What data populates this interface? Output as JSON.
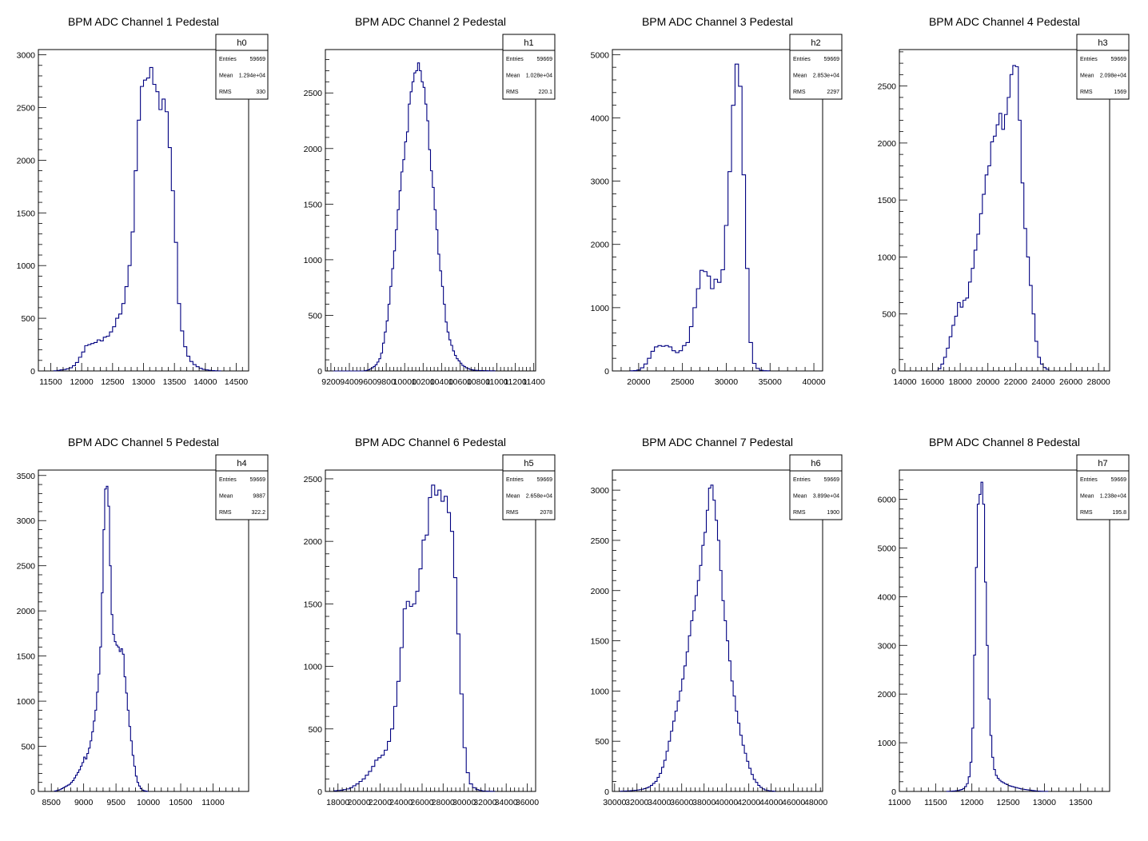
{
  "line_color": "#000080",
  "axis_color": "#000000",
  "chart_data": [
    {
      "type": "histogram",
      "title": "BPM ADC Channel 1 Pedestal",
      "stats": {
        "name": "h0",
        "rows": [
          [
            "Entries",
            "59669"
          ],
          [
            "Mean",
            "1.294e+04"
          ],
          [
            "RMS",
            "330"
          ]
        ]
      },
      "xlim": [
        11300,
        14700
      ],
      "ylim": [
        0,
        3050
      ],
      "xticks": [
        11500,
        12000,
        12500,
        13000,
        13500,
        14000,
        14500
      ],
      "xtick_labels": [
        "11500",
        "12000",
        "12500",
        "13000",
        "13500",
        "14000",
        "14500"
      ],
      "yticks": [
        0,
        500,
        1000,
        1500,
        2000,
        2500,
        3000
      ],
      "ytick_labels": [
        "0",
        "500",
        "1000",
        "1500",
        "2000",
        "2500",
        "3000"
      ],
      "hist": {
        "start": 11550,
        "width": 50,
        "counts": [
          2,
          5,
          10,
          14,
          20,
          30,
          50,
          80,
          130,
          180,
          240,
          250,
          260,
          270,
          295,
          285,
          320,
          330,
          370,
          420,
          500,
          540,
          640,
          800,
          1000,
          1320,
          1900,
          2380,
          2700,
          2760,
          2780,
          2880,
          2720,
          2650,
          2480,
          2580,
          2460,
          2120,
          1710,
          1220,
          640,
          380,
          230,
          140,
          90,
          60,
          40,
          25,
          15,
          10,
          6,
          3,
          2,
          1
        ]
      }
    },
    {
      "type": "histogram",
      "title": "BPM ADC Channel 2 Pedestal",
      "stats": {
        "name": "h1",
        "rows": [
          [
            "Entries",
            "59669"
          ],
          [
            "Mean",
            "1.028e+04"
          ],
          [
            "RMS",
            "220.1"
          ]
        ]
      },
      "xlim": [
        9140,
        11420
      ],
      "ylim": [
        0,
        2890
      ],
      "xticks": [
        9200,
        9400,
        9600,
        9800,
        10000,
        10200,
        10400,
        10600,
        10800,
        11000,
        11200,
        11400
      ],
      "xtick_labels": [
        "9200",
        "9400",
        "9600",
        "9800",
        "10000",
        "10200",
        "10400",
        "10600",
        "10800",
        "11000",
        "11200",
        "11400"
      ],
      "yticks": [
        0,
        500,
        1000,
        1500,
        2000,
        2500
      ],
      "ytick_labels": [
        "0",
        "500",
        "1000",
        "1500",
        "2000",
        "2500"
      ],
      "hist": {
        "start": 9180,
        "width": 20,
        "counts": [
          0,
          0,
          0,
          0,
          0,
          0,
          0,
          0,
          0,
          0,
          0,
          0,
          0,
          0,
          0,
          0,
          0,
          0,
          0,
          2,
          5,
          10,
          18,
          28,
          40,
          55,
          80,
          110,
          160,
          250,
          350,
          450,
          600,
          760,
          920,
          1080,
          1270,
          1450,
          1620,
          1790,
          1900,
          2060,
          2150,
          2400,
          2510,
          2600,
          2680,
          2700,
          2770,
          2700,
          2600,
          2550,
          2400,
          2250,
          1990,
          1800,
          1650,
          1450,
          1270,
          1050,
          900,
          760,
          600,
          440,
          350,
          280,
          230,
          180,
          140,
          110,
          90,
          70,
          50,
          40,
          28,
          22,
          15,
          10,
          8,
          6,
          5,
          4,
          3,
          3,
          2,
          2,
          1,
          1,
          1,
          1
        ]
      }
    },
    {
      "type": "histogram",
      "title": "BPM ADC Channel 3 Pedestal",
      "stats": {
        "name": "h2",
        "rows": [
          [
            "Entries",
            "59669"
          ],
          [
            "Mean",
            "2.853e+04"
          ],
          [
            "RMS",
            "2297"
          ]
        ]
      },
      "xlim": [
        17000,
        41000
      ],
      "ylim": [
        0,
        5080
      ],
      "xticks": [
        20000,
        25000,
        30000,
        35000,
        40000
      ],
      "xtick_labels": [
        "20000",
        "25000",
        "30000",
        "35000",
        "40000"
      ],
      "yticks": [
        0,
        1000,
        2000,
        3000,
        4000,
        5000
      ],
      "ytick_labels": [
        "0",
        "1000",
        "2000",
        "3000",
        "4000",
        "5000"
      ],
      "hist": {
        "start": 19000,
        "width": 400,
        "counts": [
          2,
          5,
          15,
          50,
          110,
          200,
          310,
          380,
          400,
          390,
          400,
          380,
          320,
          290,
          320,
          400,
          450,
          700,
          1000,
          1300,
          1590,
          1570,
          1500,
          1300,
          1450,
          1400,
          1600,
          2300,
          3150,
          4200,
          4850,
          4500,
          3100,
          1620,
          450,
          120,
          40,
          10,
          4,
          2
        ]
      }
    },
    {
      "type": "histogram",
      "title": "BPM ADC Channel 4 Pedestal",
      "stats": {
        "name": "h3",
        "rows": [
          [
            "Entries",
            "59669"
          ],
          [
            "Mean",
            "2.098e+04"
          ],
          [
            "RMS",
            "1569"
          ]
        ]
      },
      "xlim": [
        13600,
        28800
      ],
      "ylim": [
        0,
        2820
      ],
      "xticks": [
        14000,
        16000,
        18000,
        20000,
        22000,
        24000,
        26000,
        28000
      ],
      "xtick_labels": [
        "14000",
        "16000",
        "18000",
        "20000",
        "22000",
        "24000",
        "26000",
        "28000"
      ],
      "yticks": [
        0,
        500,
        1000,
        1500,
        2000,
        2500
      ],
      "ytick_labels": [
        "0",
        "500",
        "1000",
        "1500",
        "2000",
        "2500"
      ],
      "hist": {
        "start": 16400,
        "width": 200,
        "counts": [
          20,
          60,
          120,
          200,
          300,
          400,
          480,
          600,
          560,
          620,
          640,
          780,
          900,
          1060,
          1200,
          1380,
          1550,
          1720,
          1800,
          2010,
          2060,
          2160,
          2260,
          2120,
          2250,
          2400,
          2600,
          2680,
          2670,
          2200,
          1650,
          1250,
          1000,
          750,
          500,
          260,
          120,
          60,
          30,
          15
        ]
      }
    },
    {
      "type": "histogram",
      "title": "BPM ADC Channel 5 Pedestal",
      "stats": {
        "name": "h4",
        "rows": [
          [
            "Entries",
            "59669"
          ],
          [
            "Mean",
            "9887"
          ],
          [
            "RMS",
            "322.2"
          ]
        ]
      },
      "xlim": [
        8300,
        11550
      ],
      "ylim": [
        0,
        3560
      ],
      "xticks": [
        8500,
        9000,
        9500,
        10000,
        10500,
        11000
      ],
      "xtick_labels": [
        "8500",
        "9000",
        "9500",
        "10000",
        "10500",
        "11000"
      ],
      "yticks": [
        0,
        500,
        1000,
        1500,
        2000,
        2500,
        3000,
        3500
      ],
      "ytick_labels": [
        "0",
        "500",
        "1000",
        "1500",
        "2000",
        "2500",
        "3000",
        "3500"
      ],
      "hist": {
        "start": 8550,
        "width": 25,
        "counts": [
          5,
          10,
          15,
          20,
          30,
          40,
          50,
          60,
          70,
          80,
          100,
          120,
          150,
          180,
          210,
          240,
          280,
          320,
          380,
          360,
          420,
          480,
          560,
          660,
          780,
          900,
          1100,
          1300,
          1600,
          2200,
          2900,
          3350,
          3380,
          3160,
          2500,
          1960,
          1740,
          1660,
          1620,
          1600,
          1550,
          1580,
          1520,
          1270,
          1090,
          900,
          720,
          560,
          400,
          280,
          170,
          100,
          60,
          30,
          15,
          8,
          4,
          2
        ]
      }
    },
    {
      "type": "histogram",
      "title": "BPM ADC Channel 6 Pedestal",
      "stats": {
        "name": "h5",
        "rows": [
          [
            "Entries",
            "59669"
          ],
          [
            "Mean",
            "2.658e+04"
          ],
          [
            "RMS",
            "2078"
          ]
        ]
      },
      "xlim": [
        16800,
        36800
      ],
      "ylim": [
        0,
        2570
      ],
      "xticks": [
        18000,
        20000,
        22000,
        24000,
        26000,
        28000,
        30000,
        32000,
        34000,
        36000
      ],
      "xtick_labels": [
        "18000",
        "20000",
        "22000",
        "24000",
        "26000",
        "28000",
        "30000",
        "32000",
        "34000",
        "36000"
      ],
      "yticks": [
        0,
        500,
        1000,
        1500,
        2000,
        2500
      ],
      "ytick_labels": [
        "0",
        "500",
        "1000",
        "1500",
        "2000",
        "2500"
      ],
      "hist": {
        "start": 17600,
        "width": 300,
        "counts": [
          5,
          8,
          10,
          15,
          20,
          30,
          45,
          60,
          80,
          100,
          130,
          160,
          200,
          250,
          270,
          290,
          330,
          400,
          500,
          680,
          880,
          1150,
          1460,
          1520,
          1480,
          1500,
          1600,
          1780,
          2010,
          2050,
          2350,
          2450,
          2370,
          2410,
          2320,
          2360,
          2230,
          2080,
          1710,
          1260,
          780,
          350,
          150,
          60,
          30,
          15,
          8,
          4,
          2,
          1,
          1
        ]
      }
    },
    {
      "type": "histogram",
      "title": "BPM ADC Channel 7 Pedestal",
      "stats": {
        "name": "h6",
        "rows": [
          [
            "Entries",
            "59669"
          ],
          [
            "Mean",
            "3.899e+04"
          ],
          [
            "RMS",
            "1900"
          ]
        ]
      },
      "xlim": [
        29800,
        48600
      ],
      "ylim": [
        0,
        3200
      ],
      "xticks": [
        30000,
        32000,
        34000,
        36000,
        38000,
        40000,
        42000,
        44000,
        46000,
        48000
      ],
      "xtick_labels": [
        "30000",
        "32000",
        "34000",
        "36000",
        "38000",
        "40000",
        "42000",
        "44000",
        "46000",
        "48000"
      ],
      "yticks": [
        0,
        500,
        1000,
        1500,
        2000,
        2500,
        3000
      ],
      "ytick_labels": [
        "0",
        "500",
        "1000",
        "1500",
        "2000",
        "2500",
        "3000"
      ],
      "hist": {
        "start": 30400,
        "width": 200,
        "counts": [
          2,
          3,
          4,
          5,
          6,
          8,
          10,
          12,
          15,
          18,
          22,
          28,
          35,
          45,
          60,
          80,
          100,
          140,
          180,
          240,
          310,
          400,
          500,
          600,
          700,
          800,
          900,
          1000,
          1120,
          1250,
          1390,
          1550,
          1700,
          1800,
          1950,
          2100,
          2250,
          2450,
          2580,
          2800,
          3020,
          3050,
          2900,
          2700,
          2500,
          2200,
          1900,
          1700,
          1500,
          1300,
          1100,
          950,
          800,
          680,
          560,
          460,
          380,
          300,
          230,
          170,
          120,
          90,
          60,
          40,
          25,
          15,
          10,
          6,
          4,
          2
        ]
      }
    },
    {
      "type": "histogram",
      "title": "BPM ADC Channel 8 Pedestal",
      "stats": {
        "name": "h7",
        "rows": [
          [
            "Entries",
            "59669"
          ],
          [
            "Mean",
            "1.238e+04"
          ],
          [
            "RMS",
            "195.8"
          ]
        ]
      },
      "xlim": [
        11000,
        13900
      ],
      "ylim": [
        0,
        6600
      ],
      "xticks": [
        11000,
        11500,
        12000,
        12500,
        13000,
        13500
      ],
      "xtick_labels": [
        "11000",
        "11500",
        "12000",
        "12500",
        "13000",
        "13500"
      ],
      "yticks": [
        0,
        1000,
        2000,
        3000,
        4000,
        5000,
        6000
      ],
      "ytick_labels": [
        "0",
        "1000",
        "2000",
        "3000",
        "4000",
        "5000",
        "6000"
      ],
      "hist": {
        "start": 11650,
        "width": 25,
        "counts": [
          2,
          3,
          5,
          8,
          10,
          15,
          20,
          30,
          40,
          60,
          100,
          160,
          300,
          600,
          1300,
          2800,
          4600,
          5900,
          6100,
          6350,
          5900,
          4300,
          3000,
          1900,
          1150,
          700,
          450,
          330,
          270,
          230,
          200,
          180,
          160,
          140,
          120,
          110,
          100,
          90,
          80,
          70,
          60,
          50,
          45,
          40,
          35,
          30,
          25,
          20,
          15,
          10,
          8,
          6,
          4,
          3,
          2,
          1
        ]
      }
    }
  ]
}
